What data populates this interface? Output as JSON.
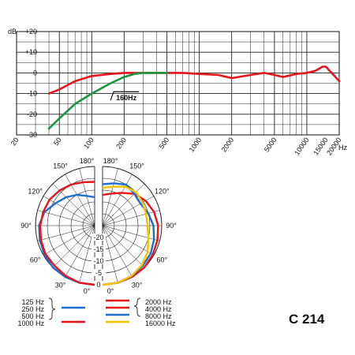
{
  "chart_data": [
    {
      "type": "line",
      "title": "",
      "x_scale": "log",
      "xlim": [
        20,
        20000
      ],
      "ylim": [
        -30,
        20
      ],
      "ylabel": "dB",
      "xunit": "Hz",
      "grid": true,
      "x_ticks": [
        20,
        50,
        100,
        200,
        500,
        1000,
        2000,
        5000,
        10000,
        15000,
        20000
      ],
      "x_tick_labels": [
        "20",
        "50",
        "100",
        "200",
        "500",
        "1000",
        "2000",
        "5000",
        "10000",
        "15000",
        "20000"
      ],
      "y_ticks": [
        20,
        10,
        0,
        -10,
        -20,
        -30
      ],
      "y_tick_labels": [
        "+20",
        "+10",
        "0",
        "-10",
        "-20",
        "-30"
      ],
      "annotation": "160Hz",
      "series": [
        {
          "color": "#e8141c",
          "x": [
            40,
            50,
            70,
            100,
            150,
            200,
            300,
            500,
            700,
            1000,
            1500,
            2000,
            3000,
            4000,
            5000,
            6000,
            8000,
            10000,
            12000,
            14000,
            15000,
            17000,
            20000
          ],
          "y": [
            -10,
            -8,
            -4,
            -1.5,
            -0.5,
            0,
            0,
            0,
            0,
            -0.5,
            -1,
            -2.5,
            -1,
            0,
            -1,
            -2,
            -0.5,
            0,
            1,
            3,
            3,
            0,
            -4
          ]
        },
        {
          "color": "#1a9640",
          "x": [
            40,
            50,
            70,
            100,
            150,
            200,
            250,
            300,
            400,
            500
          ],
          "y": [
            -27,
            -22,
            -15,
            -10,
            -5,
            -2,
            -0.5,
            0,
            0,
            0
          ]
        }
      ]
    },
    {
      "type": "polar",
      "angle_labels": [
        "180°",
        "150°",
        "120°",
        "90°",
        "60°",
        "30°",
        "0°"
      ],
      "radial_labels": [
        "-20",
        "-15",
        "-10",
        "-5",
        "0"
      ],
      "angles_deg": [
        0,
        15,
        30,
        45,
        60,
        75,
        90,
        105,
        120,
        135,
        150,
        165,
        180
      ],
      "left_half_series": [
        {
          "legend_index": 0,
          "color": "#1f6fcf",
          "db": [
            0,
            0,
            0,
            0,
            -0.5,
            -1,
            -1.5,
            -3,
            -6,
            -8,
            -10,
            -12,
            -13
          ]
        },
        {
          "legend_index": 1,
          "color": "#e8141c",
          "db": [
            0,
            0,
            -0.5,
            -1,
            -1,
            -1.5,
            -2,
            -2.5,
            -3,
            -4,
            -5,
            -6,
            -6.5
          ]
        }
      ],
      "right_half_series": [
        {
          "legend_index": 2,
          "color": "#e8141c",
          "db": [
            0,
            0,
            0,
            0,
            -0.5,
            -1,
            -1.5,
            -2.5,
            -4,
            -6,
            -9,
            -11,
            -12
          ]
        },
        {
          "legend_index": 3,
          "color": "#1f6fcf",
          "db": [
            0,
            0,
            -0.5,
            -1,
            -1.5,
            -2.5,
            -3.5,
            -5,
            -6.5,
            -6,
            -5,
            -6.5,
            -7.5
          ]
        },
        {
          "legend_index": 4,
          "color": "#f3c400",
          "db": [
            0,
            0,
            -0.5,
            -1.5,
            -3,
            -5,
            -6,
            -6,
            -5.5,
            -5,
            -6,
            -8,
            -9
          ]
        }
      ]
    }
  ],
  "legend": {
    "left": {
      "grouped_labels": [
        "125 Hz",
        "250 Hz",
        "500 Hz"
      ],
      "grouped_color": "#1f6fcf",
      "single_label": "1000 Hz",
      "single_color": "#e8141c"
    },
    "right": {
      "labels": [
        "2000 Hz",
        "4000 Hz",
        "8000 Hz",
        "16000 Hz"
      ],
      "colors": [
        "#e8141c",
        "#e8141c",
        "#1f6fcf",
        "#f3c400"
      ]
    }
  },
  "model_label": "C 214"
}
